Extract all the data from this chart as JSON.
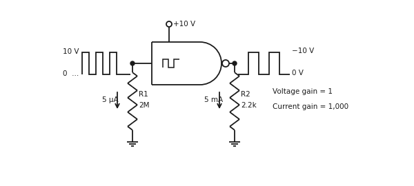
{
  "bg_color": "#ffffff",
  "line_color": "#1a1a1a",
  "figsize": [
    6.0,
    2.7
  ],
  "dpi": 100,
  "labels": {
    "plus10v": "+10 V",
    "minus10v": "−10 V",
    "zerov_right": "0 V",
    "r1_label": "R1",
    "r1_val": "2M",
    "r2_label": "R2",
    "r2_val": "2.2k",
    "i1_label": "5 μA",
    "i2_label": "5 mA",
    "vgain": "Voltage gain = 1",
    "cgain": "Current gain = 1,000",
    "v10": "10 V",
    "v0": "0  …"
  }
}
